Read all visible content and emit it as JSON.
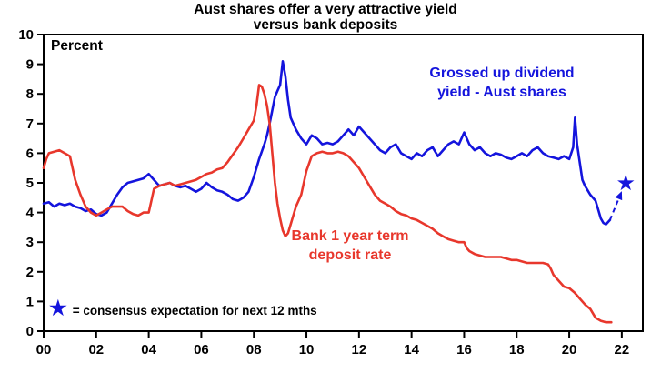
{
  "chart_data": {
    "type": "line",
    "title": "Aust shares offer a very attractive yield versus bank deposits",
    "title_line1": "Aust shares offer a very attractive yield",
    "title_line2": "versus bank deposits",
    "ylabel": "Percent",
    "xlabel": "",
    "ylim": [
      0,
      10
    ],
    "xlim": [
      2000,
      2022.8
    ],
    "grid": false,
    "axis_color": "#000000",
    "yticks": [
      0,
      1,
      2,
      3,
      4,
      5,
      6,
      7,
      8,
      9,
      10
    ],
    "ytick_labels": [
      "0",
      "1",
      "2",
      "3",
      "4",
      "5",
      "6",
      "7",
      "8",
      "9",
      "10"
    ],
    "xticks": [
      2000,
      2002,
      2004,
      2006,
      2008,
      2010,
      2012,
      2014,
      2016,
      2018,
      2020,
      2022
    ],
    "xtick_labels": [
      "00",
      "02",
      "04",
      "06",
      "08",
      "10",
      "12",
      "14",
      "16",
      "18",
      "20",
      "22"
    ],
    "series": [
      {
        "name": "Grossed up dividend yield - Aust shares",
        "color": "#1414dd",
        "points": [
          [
            2000.0,
            4.3
          ],
          [
            2000.2,
            4.35
          ],
          [
            2000.4,
            4.2
          ],
          [
            2000.6,
            4.3
          ],
          [
            2000.8,
            4.25
          ],
          [
            2001.0,
            4.3
          ],
          [
            2001.2,
            4.2
          ],
          [
            2001.4,
            4.15
          ],
          [
            2001.6,
            4.05
          ],
          [
            2001.8,
            4.1
          ],
          [
            2002.0,
            3.95
          ],
          [
            2002.2,
            3.9
          ],
          [
            2002.4,
            4.0
          ],
          [
            2002.6,
            4.3
          ],
          [
            2002.8,
            4.6
          ],
          [
            2003.0,
            4.85
          ],
          [
            2003.2,
            5.0
          ],
          [
            2003.4,
            5.05
          ],
          [
            2003.6,
            5.1
          ],
          [
            2003.8,
            5.15
          ],
          [
            2004.0,
            5.3
          ],
          [
            2004.2,
            5.1
          ],
          [
            2004.4,
            4.9
          ],
          [
            2004.6,
            4.95
          ],
          [
            2004.8,
            5.0
          ],
          [
            2005.0,
            4.9
          ],
          [
            2005.2,
            4.85
          ],
          [
            2005.4,
            4.9
          ],
          [
            2005.6,
            4.8
          ],
          [
            2005.8,
            4.7
          ],
          [
            2006.0,
            4.8
          ],
          [
            2006.2,
            5.0
          ],
          [
            2006.4,
            4.85
          ],
          [
            2006.6,
            4.75
          ],
          [
            2006.8,
            4.7
          ],
          [
            2007.0,
            4.6
          ],
          [
            2007.2,
            4.45
          ],
          [
            2007.4,
            4.4
          ],
          [
            2007.6,
            4.5
          ],
          [
            2007.8,
            4.7
          ],
          [
            2008.0,
            5.2
          ],
          [
            2008.2,
            5.8
          ],
          [
            2008.4,
            6.3
          ],
          [
            2008.5,
            6.6
          ],
          [
            2008.6,
            7.0
          ],
          [
            2008.8,
            7.9
          ],
          [
            2008.9,
            8.1
          ],
          [
            2009.0,
            8.3
          ],
          [
            2009.1,
            9.1
          ],
          [
            2009.2,
            8.6
          ],
          [
            2009.3,
            7.8
          ],
          [
            2009.4,
            7.2
          ],
          [
            2009.5,
            7.0
          ],
          [
            2009.6,
            6.8
          ],
          [
            2009.8,
            6.5
          ],
          [
            2010.0,
            6.3
          ],
          [
            2010.2,
            6.6
          ],
          [
            2010.4,
            6.5
          ],
          [
            2010.6,
            6.3
          ],
          [
            2010.8,
            6.35
          ],
          [
            2011.0,
            6.3
          ],
          [
            2011.2,
            6.4
          ],
          [
            2011.4,
            6.6
          ],
          [
            2011.6,
            6.8
          ],
          [
            2011.8,
            6.6
          ],
          [
            2012.0,
            6.9
          ],
          [
            2012.2,
            6.7
          ],
          [
            2012.4,
            6.5
          ],
          [
            2012.6,
            6.3
          ],
          [
            2012.8,
            6.1
          ],
          [
            2013.0,
            6.0
          ],
          [
            2013.2,
            6.2
          ],
          [
            2013.4,
            6.3
          ],
          [
            2013.6,
            6.0
          ],
          [
            2013.8,
            5.9
          ],
          [
            2014.0,
            5.8
          ],
          [
            2014.2,
            6.0
          ],
          [
            2014.4,
            5.9
          ],
          [
            2014.6,
            6.1
          ],
          [
            2014.8,
            6.2
          ],
          [
            2015.0,
            5.9
          ],
          [
            2015.2,
            6.1
          ],
          [
            2015.4,
            6.3
          ],
          [
            2015.6,
            6.4
          ],
          [
            2015.8,
            6.3
          ],
          [
            2016.0,
            6.7
          ],
          [
            2016.2,
            6.3
          ],
          [
            2016.4,
            6.1
          ],
          [
            2016.6,
            6.2
          ],
          [
            2016.8,
            6.0
          ],
          [
            2017.0,
            5.9
          ],
          [
            2017.2,
            6.0
          ],
          [
            2017.4,
            5.95
          ],
          [
            2017.6,
            5.85
          ],
          [
            2017.8,
            5.8
          ],
          [
            2018.0,
            5.9
          ],
          [
            2018.2,
            6.0
          ],
          [
            2018.4,
            5.9
          ],
          [
            2018.6,
            6.1
          ],
          [
            2018.8,
            6.2
          ],
          [
            2019.0,
            6.0
          ],
          [
            2019.2,
            5.9
          ],
          [
            2019.4,
            5.85
          ],
          [
            2019.6,
            5.8
          ],
          [
            2019.8,
            5.9
          ],
          [
            2020.0,
            5.8
          ],
          [
            2020.15,
            6.2
          ],
          [
            2020.22,
            7.2
          ],
          [
            2020.3,
            6.3
          ],
          [
            2020.4,
            5.7
          ],
          [
            2020.5,
            5.1
          ],
          [
            2020.6,
            4.9
          ],
          [
            2020.8,
            4.6
          ],
          [
            2021.0,
            4.4
          ],
          [
            2021.1,
            4.1
          ],
          [
            2021.2,
            3.8
          ],
          [
            2021.3,
            3.65
          ],
          [
            2021.4,
            3.6
          ],
          [
            2021.55,
            3.75
          ]
        ]
      },
      {
        "name": "Bank 1 year term deposit rate",
        "color": "#e8372c",
        "points": [
          [
            2000.0,
            5.5
          ],
          [
            2000.1,
            5.8
          ],
          [
            2000.2,
            6.0
          ],
          [
            2000.4,
            6.05
          ],
          [
            2000.6,
            6.1
          ],
          [
            2000.8,
            6.0
          ],
          [
            2001.0,
            5.9
          ],
          [
            2001.1,
            5.5
          ],
          [
            2001.2,
            5.1
          ],
          [
            2001.4,
            4.6
          ],
          [
            2001.6,
            4.2
          ],
          [
            2001.8,
            4.0
          ],
          [
            2002.0,
            3.9
          ],
          [
            2002.2,
            4.0
          ],
          [
            2002.4,
            4.1
          ],
          [
            2002.6,
            4.2
          ],
          [
            2002.8,
            4.2
          ],
          [
            2003.0,
            4.2
          ],
          [
            2003.2,
            4.05
          ],
          [
            2003.4,
            3.95
          ],
          [
            2003.6,
            3.9
          ],
          [
            2003.8,
            4.0
          ],
          [
            2004.0,
            4.0
          ],
          [
            2004.1,
            4.4
          ],
          [
            2004.2,
            4.8
          ],
          [
            2004.4,
            4.9
          ],
          [
            2004.6,
            4.95
          ],
          [
            2004.8,
            5.0
          ],
          [
            2005.0,
            4.9
          ],
          [
            2005.2,
            4.95
          ],
          [
            2005.4,
            5.0
          ],
          [
            2005.6,
            5.05
          ],
          [
            2005.8,
            5.1
          ],
          [
            2006.0,
            5.2
          ],
          [
            2006.2,
            5.3
          ],
          [
            2006.4,
            5.35
          ],
          [
            2006.6,
            5.45
          ],
          [
            2006.8,
            5.5
          ],
          [
            2007.0,
            5.7
          ],
          [
            2007.2,
            5.95
          ],
          [
            2007.4,
            6.2
          ],
          [
            2007.6,
            6.5
          ],
          [
            2007.8,
            6.8
          ],
          [
            2008.0,
            7.1
          ],
          [
            2008.1,
            7.6
          ],
          [
            2008.2,
            8.3
          ],
          [
            2008.3,
            8.25
          ],
          [
            2008.4,
            8.0
          ],
          [
            2008.5,
            7.6
          ],
          [
            2008.6,
            7.0
          ],
          [
            2008.7,
            6.0
          ],
          [
            2008.8,
            5.0
          ],
          [
            2008.9,
            4.3
          ],
          [
            2009.0,
            3.8
          ],
          [
            2009.1,
            3.4
          ],
          [
            2009.2,
            3.2
          ],
          [
            2009.3,
            3.3
          ],
          [
            2009.4,
            3.6
          ],
          [
            2009.5,
            3.9
          ],
          [
            2009.6,
            4.2
          ],
          [
            2009.8,
            4.6
          ],
          [
            2010.0,
            5.4
          ],
          [
            2010.2,
            5.9
          ],
          [
            2010.4,
            6.0
          ],
          [
            2010.6,
            6.05
          ],
          [
            2010.8,
            6.0
          ],
          [
            2011.0,
            6.0
          ],
          [
            2011.2,
            6.05
          ],
          [
            2011.4,
            6.0
          ],
          [
            2011.6,
            5.9
          ],
          [
            2011.8,
            5.7
          ],
          [
            2012.0,
            5.5
          ],
          [
            2012.2,
            5.2
          ],
          [
            2012.4,
            4.9
          ],
          [
            2012.6,
            4.6
          ],
          [
            2012.8,
            4.4
          ],
          [
            2013.0,
            4.3
          ],
          [
            2013.2,
            4.2
          ],
          [
            2013.4,
            4.05
          ],
          [
            2013.6,
            3.95
          ],
          [
            2013.8,
            3.9
          ],
          [
            2014.0,
            3.8
          ],
          [
            2014.2,
            3.75
          ],
          [
            2014.4,
            3.65
          ],
          [
            2014.6,
            3.55
          ],
          [
            2014.8,
            3.45
          ],
          [
            2015.0,
            3.3
          ],
          [
            2015.2,
            3.2
          ],
          [
            2015.4,
            3.1
          ],
          [
            2015.6,
            3.05
          ],
          [
            2015.8,
            3.0
          ],
          [
            2016.0,
            3.0
          ],
          [
            2016.1,
            2.8
          ],
          [
            2016.2,
            2.7
          ],
          [
            2016.4,
            2.6
          ],
          [
            2016.6,
            2.55
          ],
          [
            2016.8,
            2.5
          ],
          [
            2017.0,
            2.5
          ],
          [
            2017.2,
            2.5
          ],
          [
            2017.4,
            2.5
          ],
          [
            2017.6,
            2.45
          ],
          [
            2017.8,
            2.4
          ],
          [
            2018.0,
            2.4
          ],
          [
            2018.2,
            2.35
          ],
          [
            2018.4,
            2.3
          ],
          [
            2018.6,
            2.3
          ],
          [
            2018.8,
            2.3
          ],
          [
            2019.0,
            2.3
          ],
          [
            2019.2,
            2.25
          ],
          [
            2019.3,
            2.1
          ],
          [
            2019.4,
            1.9
          ],
          [
            2019.6,
            1.7
          ],
          [
            2019.8,
            1.5
          ],
          [
            2020.0,
            1.45
          ],
          [
            2020.2,
            1.3
          ],
          [
            2020.4,
            1.1
          ],
          [
            2020.6,
            0.9
          ],
          [
            2020.8,
            0.75
          ],
          [
            2021.0,
            0.45
          ],
          [
            2021.2,
            0.35
          ],
          [
            2021.4,
            0.3
          ],
          [
            2021.6,
            0.3
          ]
        ]
      }
    ],
    "projection": {
      "from": [
        2021.55,
        3.75
      ],
      "to": [
        2022.0,
        4.72
      ],
      "style": "dashed"
    },
    "consensus_star": {
      "x": 2022.15,
      "y": 5.0
    },
    "annotations": [
      {
        "line1": "Grossed up dividend",
        "line2": "yield - Aust shares",
        "series": "Grossed up dividend yield - Aust shares"
      },
      {
        "line1": "Bank 1 year term",
        "line2": "deposit rate",
        "series": "Bank 1 year term deposit rate"
      }
    ],
    "legend_star": "★",
    "legend_note": "= consensus expectation for next 12 mths"
  }
}
